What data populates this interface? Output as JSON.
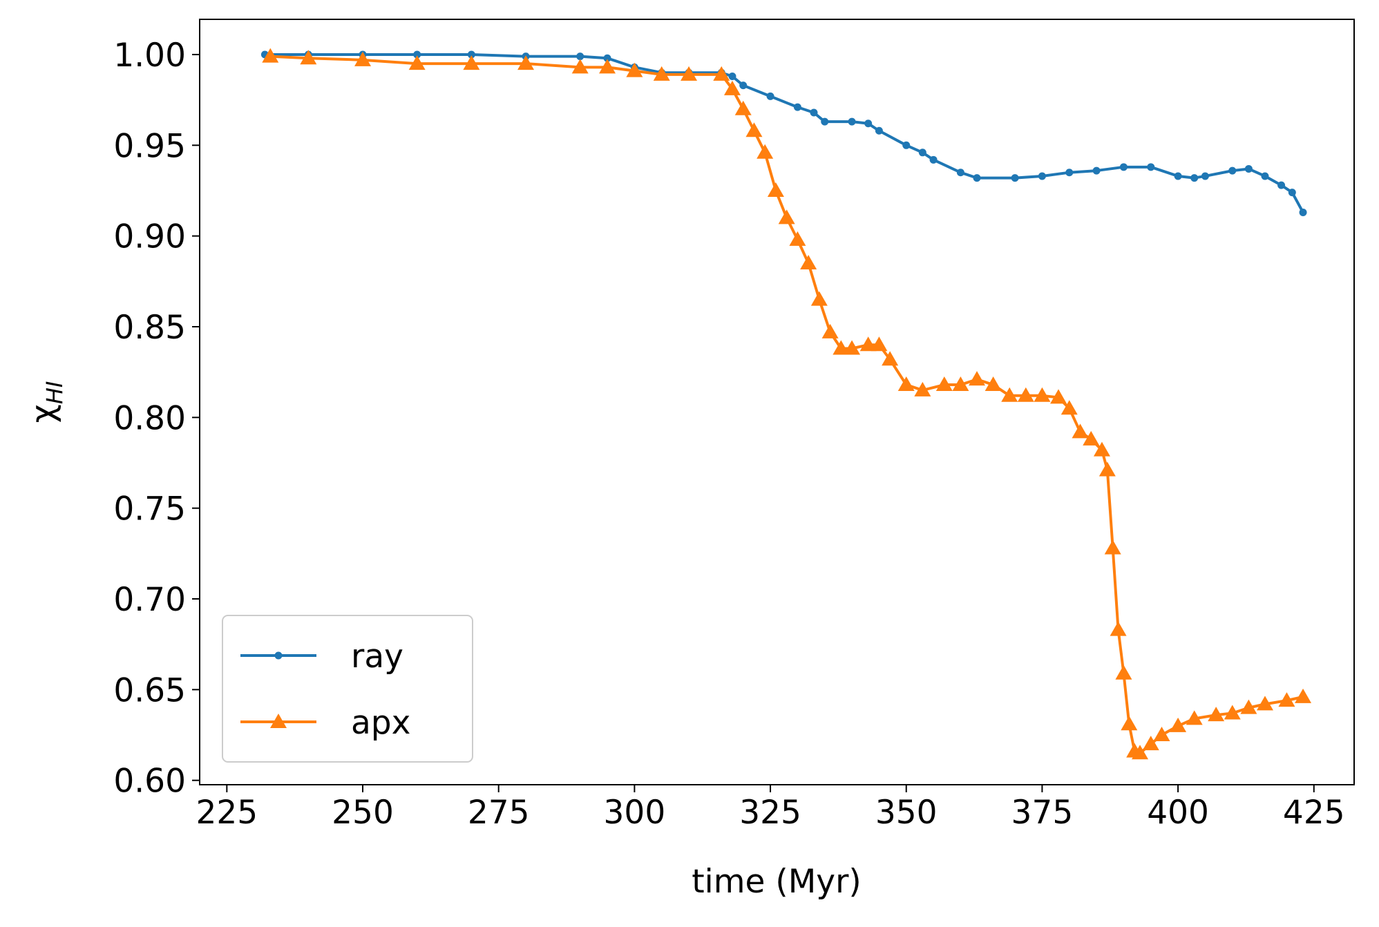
{
  "chart_data": {
    "type": "line",
    "xlabel": "time (Myr)",
    "ylabel": {
      "base": "χ",
      "sub": "HI"
    },
    "xlim": [
      220,
      432.4
    ],
    "ylim": [
      0.5976,
      1.0194
    ],
    "xticks": [
      225,
      250,
      275,
      300,
      325,
      350,
      375,
      400,
      425
    ],
    "yticks": [
      {
        "value": 0.6,
        "label": "0.60"
      },
      {
        "value": 0.65,
        "label": "0.65"
      },
      {
        "value": 0.7,
        "label": "0.70"
      },
      {
        "value": 0.75,
        "label": "0.75"
      },
      {
        "value": 0.8,
        "label": "0.80"
      },
      {
        "value": 0.85,
        "label": "0.85"
      },
      {
        "value": 0.9,
        "label": "0.90"
      },
      {
        "value": 0.95,
        "label": "0.95"
      },
      {
        "value": 1.0,
        "label": "1.00"
      }
    ],
    "legend": "lower left",
    "series": [
      {
        "name": "ray",
        "color": "#1f77b4",
        "marker": "circle",
        "x": [
          232,
          240,
          250,
          260,
          270,
          280,
          290,
          295,
          300,
          305,
          310,
          316,
          318,
          320,
          325,
          330,
          333,
          335,
          340,
          343,
          345,
          350,
          353,
          355,
          360,
          363,
          370,
          375,
          380,
          385,
          390,
          395,
          400,
          403,
          405,
          410,
          413,
          416,
          419,
          421,
          423
        ],
        "values": [
          1.0,
          1.0,
          1.0,
          1.0,
          1.0,
          0.999,
          0.999,
          0.998,
          0.993,
          0.99,
          0.99,
          0.99,
          0.988,
          0.983,
          0.977,
          0.971,
          0.968,
          0.963,
          0.963,
          0.962,
          0.958,
          0.95,
          0.946,
          0.942,
          0.935,
          0.932,
          0.932,
          0.933,
          0.935,
          0.936,
          0.938,
          0.938,
          0.933,
          0.932,
          0.933,
          0.936,
          0.937,
          0.933,
          0.928,
          0.924,
          0.913
        ]
      },
      {
        "name": "apx",
        "color": "#ff7f0e",
        "marker": "triangle",
        "x": [
          233,
          240,
          250,
          260,
          270,
          280,
          290,
          295,
          300,
          305,
          310,
          316,
          318,
          320,
          322,
          324,
          326,
          328,
          330,
          332,
          334,
          336,
          338,
          340,
          343,
          345,
          347,
          350,
          353,
          357,
          360,
          363,
          366,
          369,
          372,
          375,
          378,
          380,
          382,
          384,
          386,
          387,
          388,
          389,
          390,
          391,
          392,
          393,
          395,
          397,
          400,
          403,
          407,
          410,
          413,
          416,
          420,
          423
        ],
        "values": [
          0.999,
          0.998,
          0.997,
          0.995,
          0.995,
          0.995,
          0.993,
          0.993,
          0.991,
          0.989,
          0.989,
          0.989,
          0.981,
          0.97,
          0.958,
          0.946,
          0.925,
          0.91,
          0.898,
          0.885,
          0.865,
          0.847,
          0.838,
          0.838,
          0.84,
          0.84,
          0.832,
          0.818,
          0.815,
          0.818,
          0.818,
          0.821,
          0.818,
          0.812,
          0.812,
          0.812,
          0.811,
          0.805,
          0.792,
          0.788,
          0.782,
          0.771,
          0.728,
          0.683,
          0.659,
          0.631,
          0.616,
          0.615,
          0.62,
          0.625,
          0.63,
          0.634,
          0.636,
          0.637,
          0.64,
          0.642,
          0.644,
          0.646
        ]
      }
    ]
  }
}
